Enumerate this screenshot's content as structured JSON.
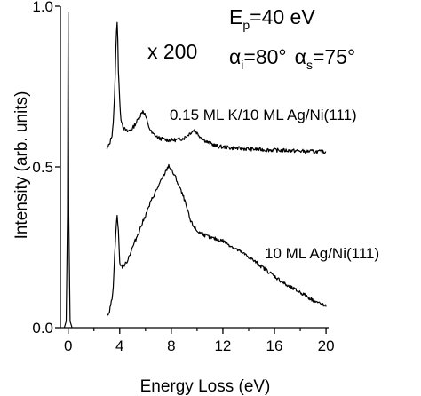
{
  "chart_data": {
    "type": "line",
    "title": "",
    "xlabel": "Energy Loss (eV)",
    "ylabel": "Intensity (arb. units)",
    "xlim": [
      -0.6,
      20.2
    ],
    "ylim": [
      0,
      1.0
    ],
    "xticks": [
      0,
      4,
      8,
      12,
      16,
      20
    ],
    "xtick_labels": [
      "0",
      "4",
      "8",
      "12",
      "16",
      "20"
    ],
    "yticks": [
      0.0,
      0.5,
      1.0
    ],
    "ytick_labels": [
      "0.0",
      "0.5",
      "1.0"
    ],
    "grid": false,
    "legend": "none",
    "colors": {
      "line": "#000000",
      "background": "#ffffff"
    },
    "annotations": {
      "magnification": "x 200",
      "ep_main": "E",
      "ep_sub": "p",
      "ep_value": "=40 eV",
      "alpha_i_sym": "α",
      "alpha_i_sub": "i",
      "alpha_i_value": "=80°",
      "alpha_s_sym": "α",
      "alpha_s_sub": "s",
      "alpha_s_value": "=75°",
      "label_k": "0.15 ML K/10 ML Ag/Ni(111)",
      "label_ag": "10 ML Ag/Ni(111)"
    },
    "series": [
      {
        "x": [
          3.0,
          3.2,
          3.4,
          3.5,
          3.6,
          3.7,
          3.75,
          3.8,
          3.85,
          3.9,
          4.0,
          4.1,
          4.3,
          4.6,
          5.0,
          5.3,
          5.6,
          5.8,
          6.0,
          6.2,
          6.5,
          7.0,
          7.5,
          8.0,
          8.5,
          9.0,
          9.3,
          9.6,
          9.8,
          10.0,
          10.3,
          10.8,
          11.5,
          12.0,
          13.0,
          14.0,
          15.0,
          16.0,
          17.0,
          18.0,
          19.0,
          19.5,
          20.0
        ],
        "y": [
          0.555,
          0.57,
          0.6,
          0.64,
          0.72,
          0.86,
          0.92,
          0.955,
          0.9,
          0.8,
          0.7,
          0.65,
          0.62,
          0.61,
          0.62,
          0.64,
          0.66,
          0.675,
          0.66,
          0.63,
          0.605,
          0.59,
          0.585,
          0.583,
          0.585,
          0.59,
          0.6,
          0.61,
          0.615,
          0.605,
          0.592,
          0.577,
          0.565,
          0.562,
          0.558,
          0.556,
          0.554,
          0.552,
          0.551,
          0.549,
          0.548,
          0.547,
          0.546
        ]
      },
      {
        "x": [
          3.0,
          3.2,
          3.4,
          3.5,
          3.6,
          3.7,
          3.8,
          3.9,
          4.0,
          4.2,
          4.5,
          5.0,
          5.5,
          6.0,
          6.5,
          7.0,
          7.5,
          7.8,
          8.0,
          8.3,
          8.7,
          9.0,
          9.5,
          10.0,
          11.0,
          12.0,
          13.0,
          14.0,
          15.0,
          16.0,
          17.0,
          18.0,
          19.0,
          19.5,
          20.0
        ],
        "y": [
          0.04,
          0.05,
          0.09,
          0.13,
          0.22,
          0.3,
          0.35,
          0.3,
          0.2,
          0.19,
          0.2,
          0.25,
          0.3,
          0.35,
          0.4,
          0.44,
          0.48,
          0.505,
          0.49,
          0.47,
          0.43,
          0.4,
          0.33,
          0.3,
          0.28,
          0.27,
          0.245,
          0.22,
          0.19,
          0.16,
          0.13,
          0.11,
          0.085,
          0.075,
          0.065
        ]
      },
      {
        "x": [
          -0.3,
          -0.15,
          -0.05,
          0.0,
          0.05,
          0.15,
          0.3
        ],
        "y": [
          0.0,
          0.02,
          0.35,
          0.98,
          0.35,
          0.02,
          0.0
        ]
      }
    ]
  }
}
